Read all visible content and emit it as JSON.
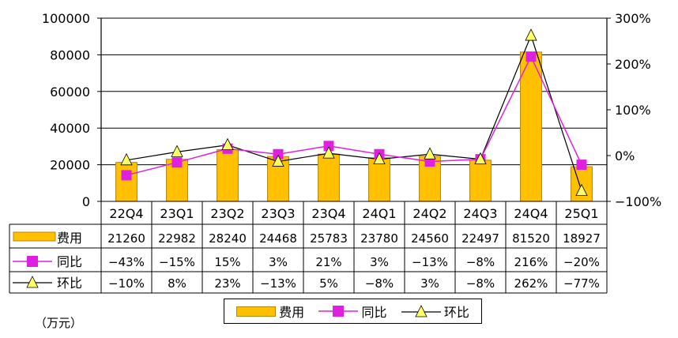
{
  "chart_data": {
    "type": "bar",
    "categories": [
      "22Q4",
      "23Q1",
      "23Q2",
      "23Q3",
      "23Q4",
      "24Q1",
      "24Q2",
      "24Q3",
      "24Q4",
      "25Q1"
    ],
    "series": [
      {
        "name": "费用",
        "type": "bar",
        "axis": "left",
        "values": [
          21260,
          22982,
          28240,
          24468,
          25783,
          23780,
          24560,
          22497,
          81520,
          18927
        ],
        "labels": [
          "21260",
          "22982",
          "28240",
          "24468",
          "25783",
          "23780",
          "24560",
          "22497",
          "81520",
          "18927"
        ]
      },
      {
        "name": "同比",
        "type": "line",
        "axis": "right",
        "unit": "%",
        "values": [
          -43,
          -15,
          15,
          3,
          21,
          3,
          -13,
          -8,
          216,
          -20
        ],
        "labels": [
          "−43%",
          "−15%",
          "15%",
          "3%",
          "21%",
          "3%",
          "−13%",
          "−8%",
          "216%",
          "−20%"
        ]
      },
      {
        "name": "环比",
        "type": "line",
        "axis": "right",
        "unit": "%",
        "values": [
          -10,
          8,
          23,
          -13,
          5,
          -8,
          3,
          -8,
          262,
          -77
        ],
        "labels": [
          "−10%",
          "8%",
          "23%",
          "−13%",
          "5%",
          "−8%",
          "3%",
          "−8%",
          "262%",
          "−77%"
        ]
      }
    ],
    "y_left": {
      "min": 0,
      "max": 100000,
      "ticks": [
        "0",
        "20000",
        "40000",
        "60000",
        "80000",
        "100000"
      ]
    },
    "y_right": {
      "min": -100,
      "max": 300,
      "ticks": [
        "−100%",
        "0%",
        "100%",
        "200%",
        "300%"
      ]
    },
    "grid": true,
    "legend_position": "bottom",
    "colors": {
      "bar": "#FFC000",
      "bar_edge": "#B8860B",
      "yoy": "#E020E0",
      "qoq": "#000000",
      "qoq_marker": "#FFFF66"
    }
  },
  "unit_note": "（万元）"
}
